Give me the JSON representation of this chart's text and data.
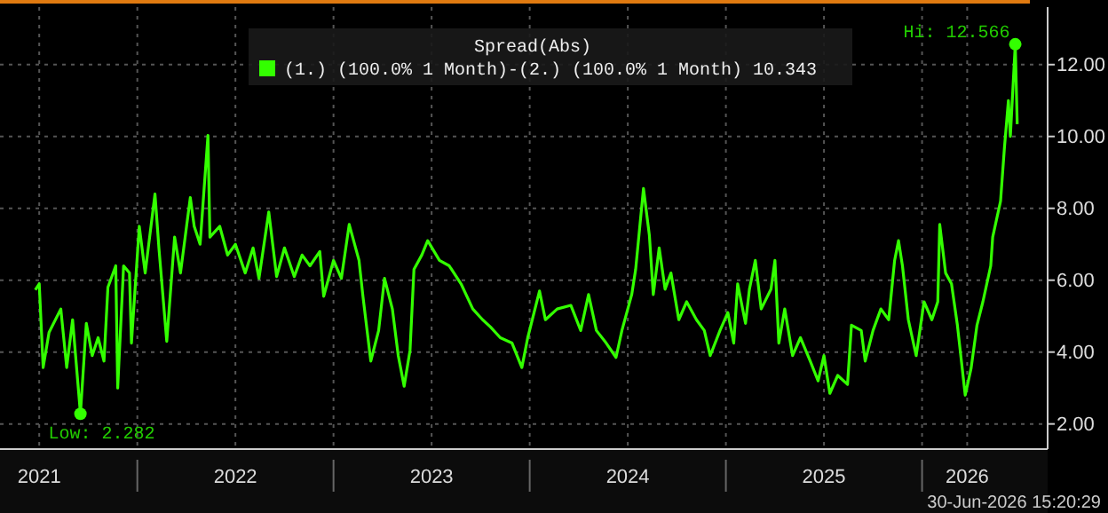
{
  "chart_data": {
    "type": "line",
    "title": "Spread(Abs)",
    "legend": "top",
    "grid": true,
    "marker": "none",
    "line_style": "solid",
    "xlim": [
      2021.3,
      2026.64
    ],
    "ylim": [
      1.3,
      13.6
    ],
    "xticks": [
      {
        "value": 2021.5,
        "label": "2021"
      },
      {
        "value": 2022,
        "label": null
      },
      {
        "value": 2022.5,
        "label": "2022"
      },
      {
        "value": 2023,
        "label": null
      },
      {
        "value": 2023.5,
        "label": "2023"
      },
      {
        "value": 2024,
        "label": null
      },
      {
        "value": 2024.5,
        "label": "2024"
      },
      {
        "value": 2025,
        "label": null
      },
      {
        "value": 2025.5,
        "label": "2025"
      },
      {
        "value": 2026,
        "label": null
      },
      {
        "value": 2026.23,
        "label": "2026"
      }
    ],
    "yticks": [
      {
        "value": 2,
        "label": "2.00"
      },
      {
        "value": 4,
        "label": "4.00"
      },
      {
        "value": 6,
        "label": "6.00"
      },
      {
        "value": 8,
        "label": "8.00"
      },
      {
        "value": 10,
        "label": "10.00"
      },
      {
        "value": 12,
        "label": "12.00"
      }
    ],
    "x": [
      2021.48,
      2021.5,
      2021.52,
      2021.55,
      2021.61,
      2021.64,
      2021.67,
      2021.71,
      2021.74,
      2021.77,
      2021.8,
      2021.83,
      2021.85,
      2021.89,
      2021.9,
      2021.93,
      2021.96,
      2021.97,
      2022.01,
      2022.04,
      2022.09,
      2022.11,
      2022.15,
      2022.19,
      2022.22,
      2022.27,
      2022.29,
      2022.32,
      2022.36,
      2022.37,
      2022.42,
      2022.46,
      2022.5,
      2022.55,
      2022.59,
      2022.62,
      2022.67,
      2022.71,
      2022.75,
      2022.8,
      2022.84,
      2022.88,
      2022.93,
      2022.95,
      2023.0,
      2023.04,
      2023.08,
      2023.13,
      2023.15,
      2023.19,
      2023.23,
      2023.26,
      2023.3,
      2023.33,
      2023.36,
      2023.39,
      2023.41,
      2023.45,
      2023.48,
      2023.54,
      2023.59,
      2023.65,
      2023.71,
      2023.76,
      2023.8,
      2023.85,
      2023.91,
      2023.96,
      2023.99,
      2024.05,
      2024.08,
      2024.14,
      2024.21,
      2024.26,
      2024.3,
      2024.34,
      2024.39,
      2024.44,
      2024.47,
      2024.52,
      2024.54,
      2024.58,
      2024.61,
      2024.63,
      2024.66,
      2024.69,
      2024.72,
      2024.76,
      2024.8,
      2024.85,
      2024.89,
      2024.92,
      2024.97,
      2025.01,
      2025.04,
      2025.06,
      2025.1,
      2025.12,
      2025.15,
      2025.18,
      2025.23,
      2025.25,
      2025.27,
      2025.3,
      2025.34,
      2025.38,
      2025.43,
      2025.47,
      2025.5,
      2025.53,
      2025.57,
      2025.62,
      2025.64,
      2025.69,
      2025.71,
      2025.75,
      2025.79,
      2025.83,
      2025.86,
      2025.88,
      2025.9,
      2025.93,
      2025.97,
      2026.01,
      2026.05,
      2026.08,
      2026.09,
      2026.12,
      2026.15,
      2026.18,
      2026.22,
      2026.25,
      2026.28,
      2026.31,
      2026.35,
      2026.36,
      2026.4,
      2026.42,
      2026.44,
      2026.45,
      2026.475,
      2026.485
    ],
    "series": [
      {
        "name": "(1.) (100.0% 1 Month)-(2.) (100.0% 1 Month) 10.343",
        "color": "#33ff00",
        "values": [
          5.73,
          5.9,
          3.57,
          4.55,
          5.2,
          3.57,
          4.9,
          2.282,
          4.8,
          3.9,
          4.4,
          3.75,
          5.8,
          6.4,
          3.0,
          6.4,
          6.2,
          4.25,
          7.5,
          6.2,
          8.4,
          6.9,
          4.3,
          7.2,
          6.2,
          8.3,
          7.5,
          7.0,
          10.03,
          7.2,
          7.5,
          6.7,
          7.0,
          6.2,
          6.9,
          6.05,
          7.9,
          6.1,
          6.9,
          6.1,
          6.7,
          6.4,
          6.8,
          5.55,
          6.55,
          6.05,
          7.55,
          6.55,
          5.55,
          3.75,
          4.6,
          6.05,
          5.2,
          3.9,
          3.05,
          4.05,
          6.3,
          6.7,
          7.1,
          6.55,
          6.4,
          5.9,
          5.2,
          4.9,
          4.7,
          4.4,
          4.25,
          3.57,
          4.4,
          5.7,
          4.9,
          5.2,
          5.3,
          4.6,
          5.6,
          4.6,
          4.25,
          3.85,
          4.6,
          5.6,
          6.3,
          8.55,
          7.25,
          5.6,
          6.9,
          5.75,
          6.2,
          4.9,
          5.4,
          4.9,
          4.6,
          3.9,
          4.6,
          5.1,
          4.25,
          5.9,
          4.8,
          5.75,
          6.55,
          5.2,
          5.75,
          6.55,
          4.25,
          5.2,
          3.9,
          4.4,
          3.75,
          3.2,
          3.9,
          2.85,
          3.35,
          3.1,
          4.75,
          4.6,
          3.75,
          4.6,
          5.2,
          4.9,
          6.55,
          7.1,
          6.4,
          4.9,
          3.9,
          5.4,
          4.9,
          5.4,
          7.55,
          6.2,
          5.9,
          4.75,
          2.8,
          3.55,
          4.75,
          5.4,
          6.4,
          7.2,
          8.2,
          9.7,
          11.0,
          10.0,
          12.566,
          10.343
        ]
      }
    ],
    "annotations": [
      {
        "text": "Low: 2.282",
        "x": 2021.71,
        "y": 2.282
      },
      {
        "text": "Hi: 12.566",
        "x": 2026.475,
        "y": 12.566
      },
      "30-Jun-2026 15:20:29"
    ]
  }
}
